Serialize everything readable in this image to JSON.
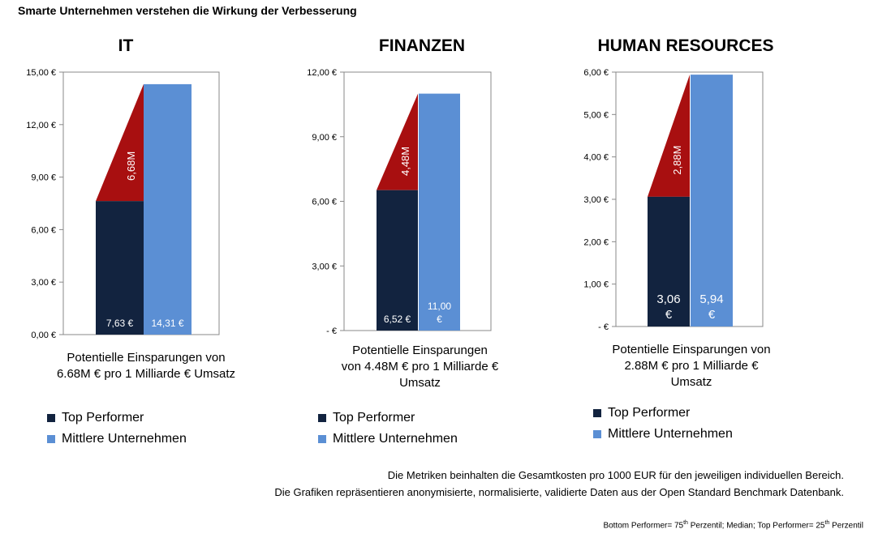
{
  "page_title": "Smarte Unternehmen verstehen die Wirkung der Verbesserung",
  "colors": {
    "top": "#12233f",
    "mid": "#5b8fd4",
    "saving": "#a80f10",
    "axis": "#888888"
  },
  "chart_data": [
    {
      "type": "bar",
      "title": "IT",
      "categories": [
        "Top Performer",
        "Mittlere Unternehmen"
      ],
      "values": [
        7.63,
        14.31
      ],
      "value_labels": [
        "7,63 €",
        "14,31 €"
      ],
      "saving_label": "6,68M",
      "ylim": [
        0,
        15
      ],
      "y_ticks": [
        0,
        3,
        6,
        9,
        12,
        15
      ],
      "y_tick_labels": [
        "0,00 €",
        "3,00 €",
        "6,00 €",
        "9,00 €",
        "12,00 €",
        "15,00 €"
      ],
      "caption": "Potentielle Einsparungen von 6.68M € pro 1 Milliarde € Umsatz"
    },
    {
      "type": "bar",
      "title": "FINANZEN",
      "categories": [
        "Top Performer",
        "Mittlere Unternehmen"
      ],
      "values": [
        6.52,
        11.0
      ],
      "value_labels": [
        "6,52 €",
        "11,00 €"
      ],
      "saving_label": "4,48M",
      "ylim": [
        0,
        12
      ],
      "y_ticks": [
        0,
        3,
        6,
        9,
        12
      ],
      "y_tick_labels": [
        "-  €",
        "3,00 €",
        "6,00 €",
        "9,00 €",
        "12,00 €"
      ],
      "caption": "Potentielle Einsparungen von 4.48M € pro 1 Milliarde € Umsatz"
    },
    {
      "type": "bar",
      "title": "HUMAN RESOURCES",
      "categories": [
        "Top Performer",
        "Mittlere Unternehmen"
      ],
      "values": [
        3.06,
        5.94
      ],
      "value_labels": [
        "3,06 €",
        "5,94 €"
      ],
      "saving_label": "2,88M",
      "ylim": [
        0,
        6
      ],
      "y_ticks": [
        0,
        1,
        2,
        3,
        4,
        5,
        6
      ],
      "y_tick_labels": [
        "-  €",
        "1,00 €",
        "2,00 €",
        "3,00 €",
        "4,00 €",
        "5,00 €",
        "6,00 €"
      ],
      "caption": "Potentielle Einsparungen von 2.88M € pro 1 Milliarde € Umsatz"
    }
  ],
  "legend": {
    "top_label": "Top Performer",
    "mid_label": "Mittlere Unternehmen"
  },
  "notes": {
    "line1": "Die Metriken beinhalten die Gesamtkosten pro 1000 EUR für den jeweiligen individuellen Bereich.",
    "line2": "Die Grafiken repräsentieren anonymisierte, normalisierte, validierte Daten aus der Open Standard Benchmark Datenbank."
  },
  "footnote": {
    "bottom": "Bottom Performer= 75",
    "mid": " Perzentil; Median; Top Performer= 25",
    "end": " Perzentil",
    "sup": "th"
  }
}
